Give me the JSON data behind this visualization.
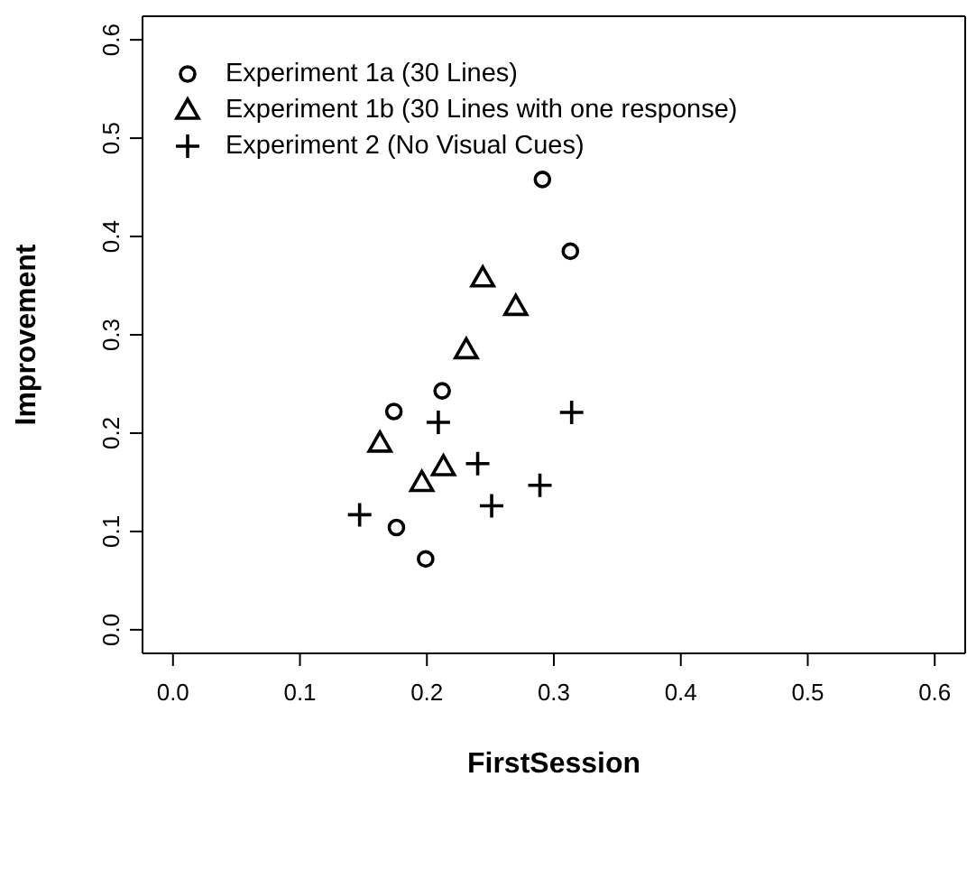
{
  "chart_data": {
    "type": "scatter",
    "xlabel": "FirstSession",
    "ylabel": "Improvement",
    "xlim": [
      -0.024,
      0.624
    ],
    "ylim": [
      -0.024,
      0.624
    ],
    "xticks": [
      {
        "value": 0,
        "label": "0.0"
      },
      0.1,
      0.2,
      0.3,
      0.4,
      0.5,
      0.6
    ],
    "yticks": [
      {
        "value": 0,
        "label": "0.0"
      },
      0.1,
      0.2,
      0.3,
      0.4,
      0.5,
      0.6
    ],
    "grid": false,
    "legend": "top left",
    "series": [
      {
        "name": "Experiment 1a (30 Lines)",
        "color": "#000000",
        "marker": "circle",
        "x": [
          0.291,
          0.313,
          0.212,
          0.174,
          0.176,
          0.199
        ],
        "values": [
          0.458,
          0.385,
          0.243,
          0.222,
          0.104,
          0.072
        ]
      },
      {
        "name": "Experiment 1b (30 Lines with one response)",
        "color": "#000000",
        "marker": "triangle",
        "x": [
          0.244,
          0.27,
          0.231,
          0.163,
          0.213,
          0.196
        ],
        "values": [
          0.358,
          0.329,
          0.285,
          0.19,
          0.166,
          0.15
        ]
      },
      {
        "name": "Experiment 2 (No Visual Cues)",
        "color": "#000000",
        "marker": "cross",
        "x": [
          0.209,
          0.314,
          0.24,
          0.289,
          0.251,
          0.147
        ],
        "values": [
          0.211,
          0.221,
          0.169,
          0.147,
          0.126,
          0.117
        ]
      }
    ]
  }
}
